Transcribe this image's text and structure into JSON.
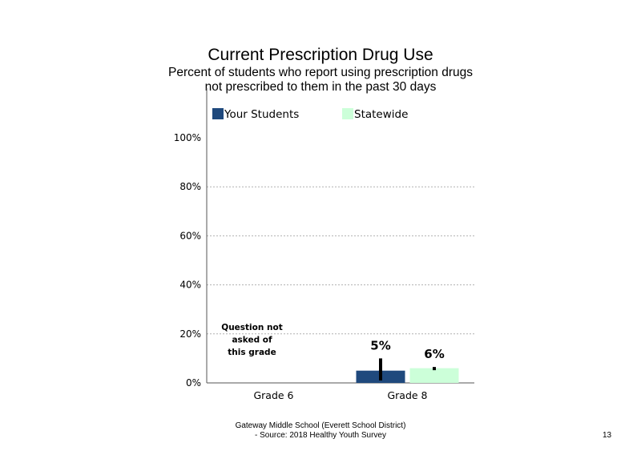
{
  "chart_data": {
    "type": "bar",
    "title": "Current Prescription Drug Use",
    "subtitle_lines": [
      "Percent of students who report using prescription drugs",
      "not prescribed to them in the past 30 days"
    ],
    "categories": [
      "Grade 6",
      "Grade 8"
    ],
    "series": [
      {
        "name": "Your Students",
        "color": "#1f497d",
        "values": [
          null,
          5
        ],
        "labels": [
          "",
          "5%"
        ],
        "error_low": [
          null,
          1
        ],
        "error_high": [
          null,
          10
        ]
      },
      {
        "name": "Statewide",
        "color": "#ccffd9",
        "values": [
          null,
          6
        ],
        "labels": [
          "",
          "6%"
        ],
        "error_low": [
          null,
          5.5
        ],
        "error_high": [
          null,
          6.5
        ]
      }
    ],
    "yticks": [
      "0%",
      "20%",
      "40%",
      "60%",
      "80%",
      "100%"
    ],
    "ylim": [
      0,
      100
    ],
    "grid": true,
    "legend": "top",
    "annotations": [
      {
        "category": "Grade 6",
        "lines": [
          "Question not",
          "asked of",
          "this grade"
        ]
      }
    ]
  },
  "footer": {
    "line1": "Gateway Middle School (Everett School District)",
    "line2": "- Source: 2018 Healthy Youth Survey"
  },
  "page_number": "13"
}
